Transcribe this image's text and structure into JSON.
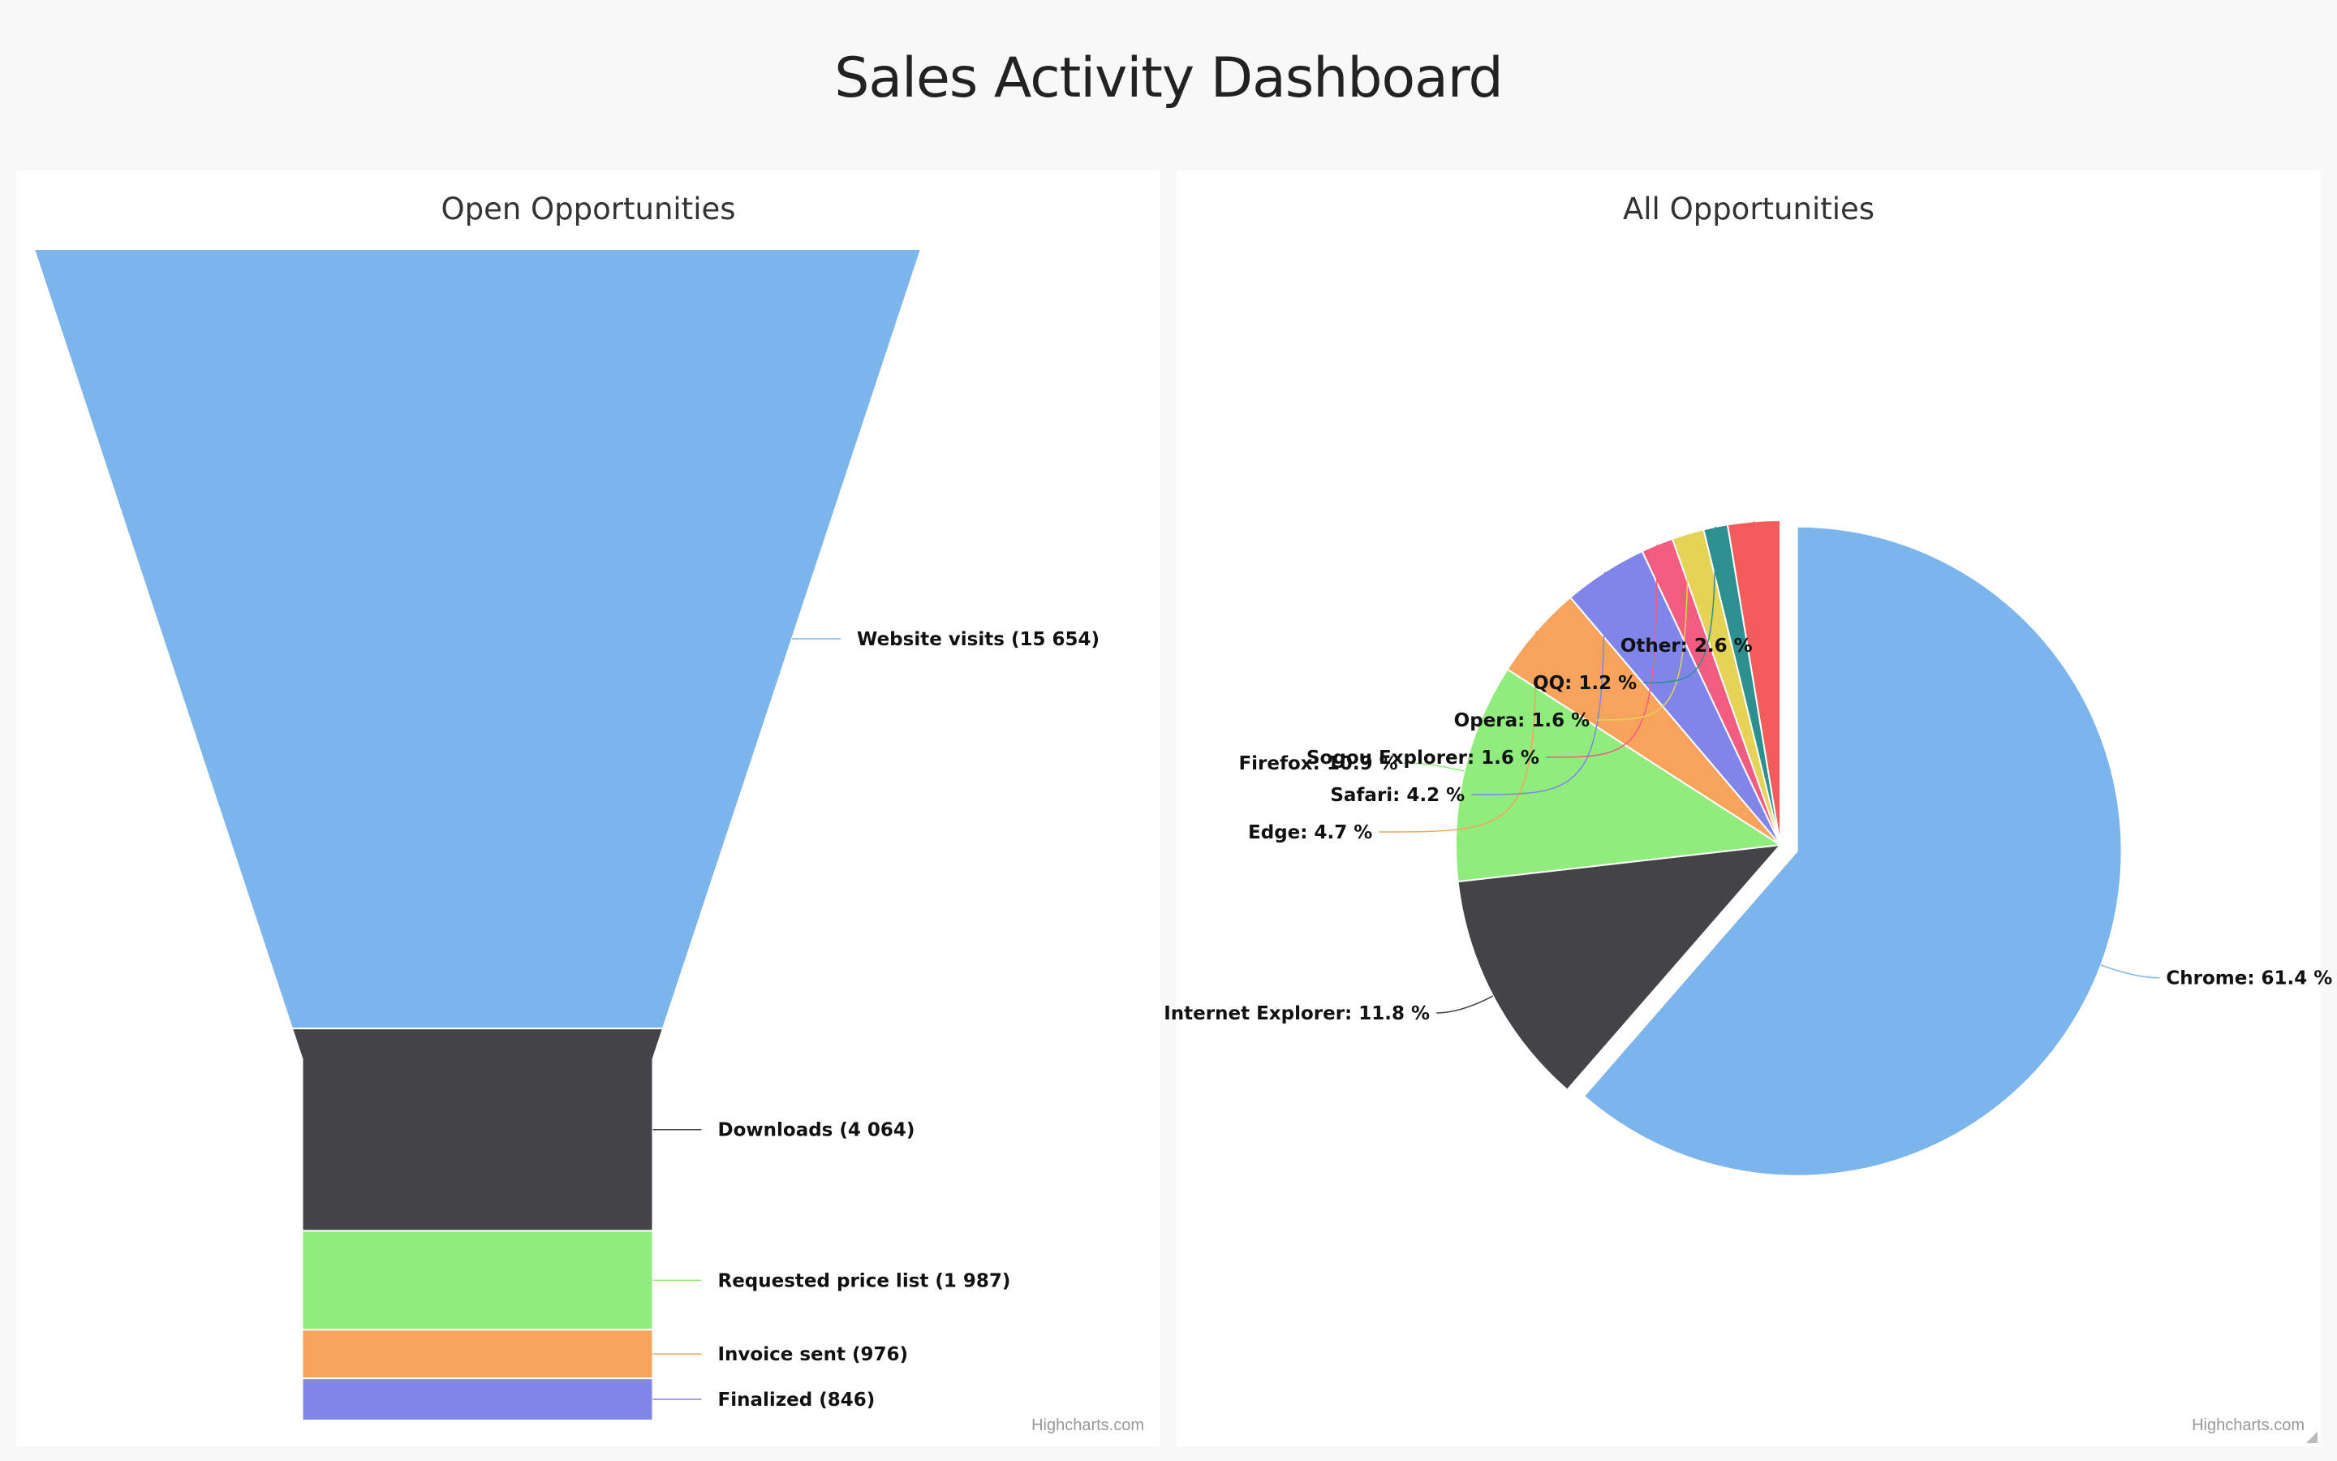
{
  "dashboard": {
    "title": "Sales Activity Dashboard"
  },
  "funnel_panel": {
    "title": "Open Opportunities",
    "credit": "Highcharts.com"
  },
  "pie_panel": {
    "title": "All Opportunities",
    "credit": "Highcharts.com"
  },
  "chart_data": [
    {
      "type": "funnel",
      "title": "Open Opportunities",
      "categories": [
        "Website visits",
        "Downloads",
        "Requested price list",
        "Invoice sent",
        "Finalized"
      ],
      "values": [
        15654,
        4064,
        1987,
        976,
        846
      ],
      "labels": [
        "Website visits (15 654)",
        "Downloads (4 064)",
        "Requested price list (1 987)",
        "Invoice sent (976)",
        "Finalized (846)"
      ],
      "colors": [
        "#7cb5ec",
        "#434348",
        "#90ed7d",
        "#f7a35c",
        "#8085e9"
      ]
    },
    {
      "type": "pie",
      "title": "All Opportunities",
      "categories": [
        "Chrome",
        "Internet Explorer",
        "Firefox",
        "Edge",
        "Safari",
        "Sogou Explorer",
        "Opera",
        "QQ",
        "Other"
      ],
      "values": [
        61.4,
        11.8,
        10.9,
        4.7,
        4.2,
        1.6,
        1.6,
        1.2,
        2.6
      ],
      "labels": [
        "Chrome: 61.4 %",
        "Internet Explorer: 11.8 %",
        "Firefox: 10.9 %",
        "Edge: 4.7 %",
        "Safari: 4.2 %",
        "Sogou Explorer: 1.6 %",
        "Opera: 1.6 %",
        "QQ: 1.2 %",
        "Other: 2.6 %"
      ],
      "colors": [
        "#7cb5ec",
        "#434348",
        "#90ed7d",
        "#f7a35c",
        "#8085e9",
        "#f15c80",
        "#e4d354",
        "#2b908f",
        "#f45b5b"
      ],
      "sliced": "Chrome",
      "unit": "%"
    }
  ]
}
